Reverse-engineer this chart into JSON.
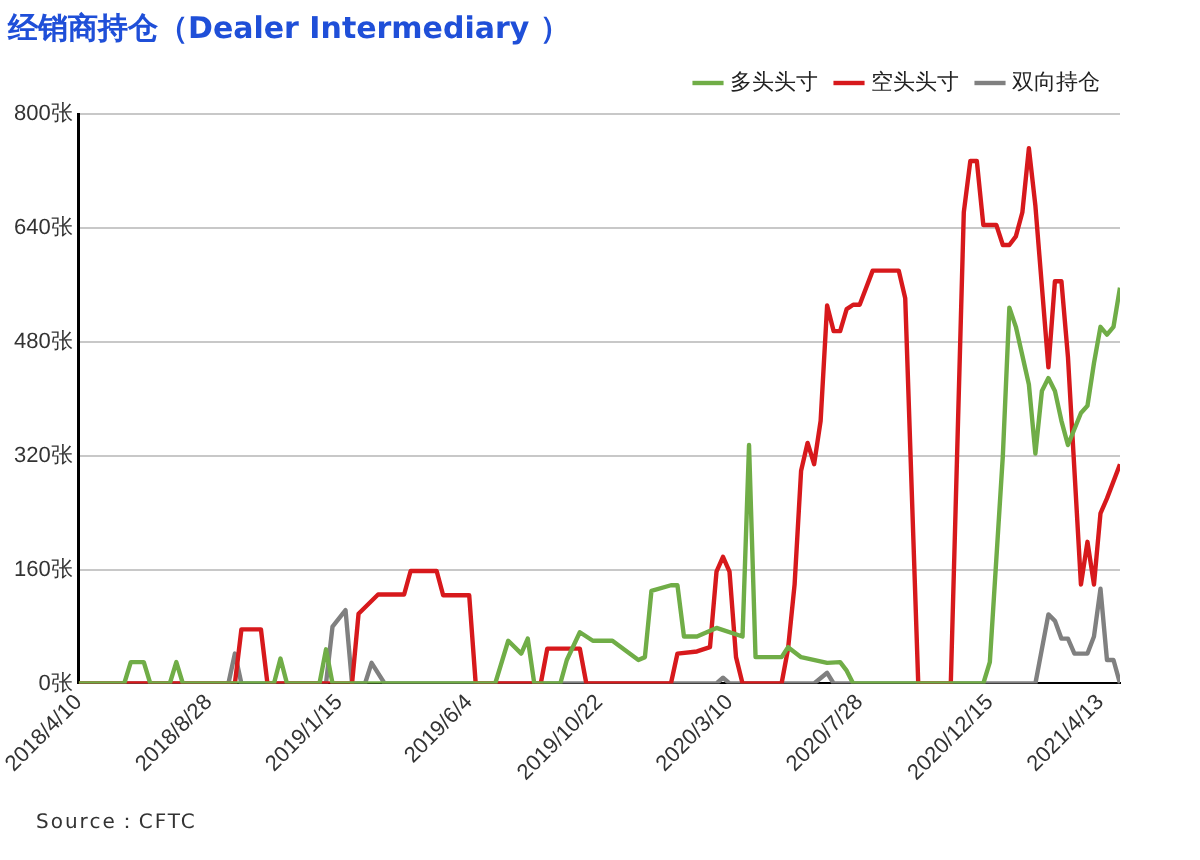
{
  "chart_data": {
    "type": "line",
    "title": "经销商持仓（Dealer Intermediary ）",
    "xlim": [
      "2018-04-10",
      "2021-05-04"
    ],
    "xticks": [
      {
        "value": "2018-04-10",
        "label": "2018/4/10"
      },
      {
        "value": "2018-08-28",
        "label": "2018/8/28"
      },
      {
        "value": "2019-01-15",
        "label": "2019/1/15"
      },
      {
        "value": "2019-06-04",
        "label": "2019/6/4"
      },
      {
        "value": "2019-10-22",
        "label": "2019/10/22"
      },
      {
        "value": "2020-03-10",
        "label": "2020/3/10"
      },
      {
        "value": "2020-07-28",
        "label": "2020/7/28"
      },
      {
        "value": "2020-12-15",
        "label": "2020/12/15"
      },
      {
        "value": "2021-04-13",
        "label": "2021/4/13"
      }
    ],
    "ylim": [
      0,
      800
    ],
    "yticks": [
      {
        "value": 0,
        "label": "0张"
      },
      {
        "value": 160,
        "label": "160张"
      },
      {
        "value": 320,
        "label": "320张"
      },
      {
        "value": 480,
        "label": "480张"
      },
      {
        "value": 640,
        "label": "640张"
      },
      {
        "value": 800,
        "label": "800张"
      }
    ],
    "grid": "y",
    "legend": "top right",
    "marker": "none",
    "line_style": "solid",
    "annotations": [
      "Source：CFTC"
    ],
    "series": [
      {
        "name": "多头头寸",
        "color": "#70ad47",
        "x": [
          "2018-04-10",
          "2018-05-29",
          "2018-06-05",
          "2018-06-19",
          "2018-06-26",
          "2018-07-17",
          "2018-07-24",
          "2018-07-31",
          "2018-11-06",
          "2018-11-13",
          "2018-11-20",
          "2018-12-25",
          "2019-01-01",
          "2019-01-08",
          "2019-07-02",
          "2019-07-16",
          "2019-07-30",
          "2019-08-06",
          "2019-08-13",
          "2019-09-10",
          "2019-09-17",
          "2019-10-01",
          "2019-10-15",
          "2019-11-05",
          "2019-12-03",
          "2019-12-10",
          "2019-12-17",
          "2020-01-07",
          "2020-01-14",
          "2020-01-21",
          "2020-02-04",
          "2020-02-25",
          "2020-03-24",
          "2020-03-31",
          "2020-04-07",
          "2020-05-05",
          "2020-05-12",
          "2020-05-26",
          "2020-06-23",
          "2020-07-07",
          "2020-07-14",
          "2020-07-21",
          "2020-12-08",
          "2020-12-15",
          "2020-12-29",
          "2021-01-05",
          "2021-01-12",
          "2021-01-26",
          "2021-02-02",
          "2021-02-09",
          "2021-02-16",
          "2021-02-23",
          "2021-03-02",
          "2021-03-09",
          "2021-03-23",
          "2021-03-30",
          "2021-04-06",
          "2021-04-13",
          "2021-04-20",
          "2021-04-27",
          "2021-05-04"
        ],
        "values": [
          0,
          0,
          30,
          30,
          0,
          0,
          30,
          0,
          0,
          35,
          0,
          0,
          48,
          0,
          0,
          60,
          42,
          63,
          0,
          0,
          33,
          72,
          60,
          60,
          33,
          37,
          130,
          138,
          138,
          66,
          66,
          78,
          66,
          335,
          37,
          37,
          51,
          37,
          29,
          30,
          18,
          0,
          0,
          30,
          320,
          528,
          501,
          420,
          323,
          411,
          429,
          411,
          369,
          335,
          380,
          390,
          450,
          501,
          490,
          501,
          556
        ]
      },
      {
        "name": "空头头寸",
        "color": "#d7191c",
        "x": [
          "2018-04-10",
          "2018-09-25",
          "2018-10-02",
          "2018-10-23",
          "2018-10-30",
          "2019-01-29",
          "2019-02-05",
          "2019-02-26",
          "2019-03-26",
          "2019-04-02",
          "2019-04-30",
          "2019-05-07",
          "2019-06-04",
          "2019-06-11",
          "2019-08-20",
          "2019-08-27",
          "2019-10-01",
          "2019-10-08",
          "2020-01-07",
          "2020-01-14",
          "2020-02-04",
          "2020-02-18",
          "2020-02-25",
          "2020-03-03",
          "2020-03-10",
          "2020-03-17",
          "2020-03-24",
          "2020-05-05",
          "2020-05-12",
          "2020-05-19",
          "2020-05-26",
          "2020-06-02",
          "2020-06-09",
          "2020-06-16",
          "2020-06-23",
          "2020-06-30",
          "2020-07-07",
          "2020-07-14",
          "2020-07-21",
          "2020-07-28",
          "2020-08-11",
          "2020-09-08",
          "2020-09-15",
          "2020-09-29",
          "2020-11-03",
          "2020-11-17",
          "2020-11-24",
          "2020-12-01",
          "2020-12-08",
          "2020-12-22",
          "2020-12-29",
          "2021-01-05",
          "2021-01-12",
          "2021-01-19",
          "2021-01-26",
          "2021-02-02",
          "2021-02-16",
          "2021-02-23",
          "2021-03-02",
          "2021-03-09",
          "2021-03-23",
          "2021-03-30",
          "2021-04-06",
          "2021-04-13",
          "2021-04-20",
          "2021-05-04"
        ],
        "values": [
          0,
          0,
          76,
          76,
          0,
          0,
          98,
          125,
          125,
          158,
          158,
          124,
          124,
          0,
          0,
          49,
          49,
          0,
          0,
          42,
          45,
          51,
          157,
          178,
          157,
          37,
          0,
          0,
          49,
          139,
          299,
          338,
          308,
          369,
          531,
          495,
          495,
          526,
          532,
          532,
          580,
          580,
          541,
          0,
          0,
          662,
          734,
          734,
          644,
          644,
          616,
          616,
          628,
          662,
          752,
          671,
          444,
          565,
          565,
          459,
          139,
          199,
          139,
          239,
          260,
          308
        ]
      },
      {
        "name": "双向持仓",
        "color": "#808080",
        "x": [
          "2018-04-10",
          "2018-09-18",
          "2018-09-25",
          "2018-10-02",
          "2019-01-01",
          "2019-01-08",
          "2019-01-22",
          "2019-01-29",
          "2019-02-12",
          "2019-02-19",
          "2019-03-05",
          "2020-02-25",
          "2020-03-03",
          "2020-03-10",
          "2020-06-09",
          "2020-06-23",
          "2020-06-30",
          "2021-02-02",
          "2021-02-16",
          "2021-02-23",
          "2021-03-02",
          "2021-03-09",
          "2021-03-16",
          "2021-03-30",
          "2021-04-06",
          "2021-04-13",
          "2021-04-20",
          "2021-04-27",
          "2021-05-04"
        ],
        "values": [
          0,
          0,
          42,
          0,
          0,
          80,
          103,
          0,
          0,
          29,
          0,
          0,
          8,
          0,
          0,
          15,
          0,
          0,
          97,
          88,
          63,
          63,
          42,
          42,
          66,
          133,
          33,
          33,
          0
        ]
      }
    ]
  }
}
